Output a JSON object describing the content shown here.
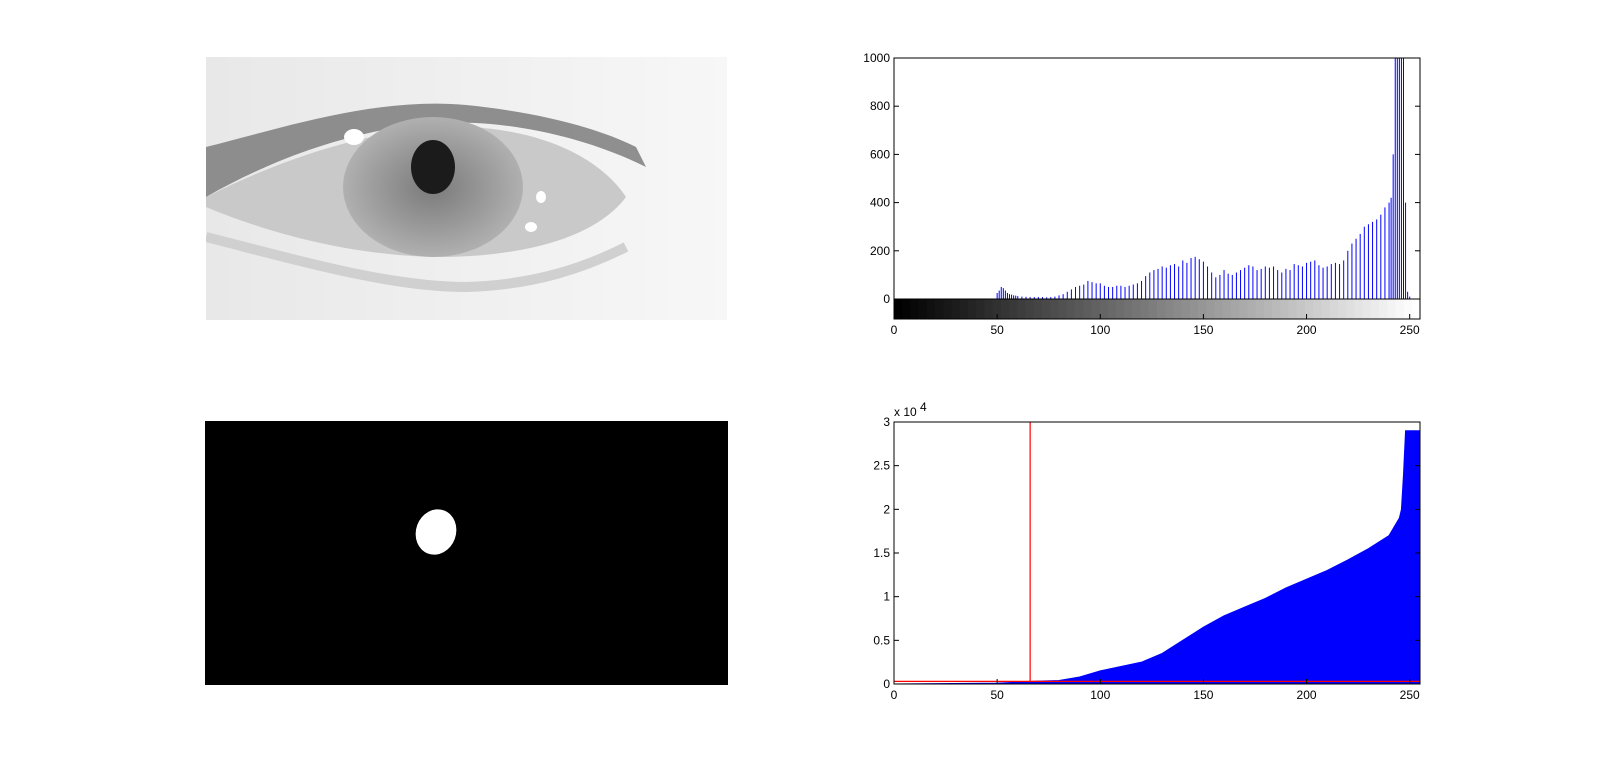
{
  "figure": {
    "panels": [
      "eye-image",
      "histogram",
      "binary-mask",
      "cumulative-histogram"
    ]
  },
  "colors": {
    "bar": "#0000ff",
    "threshold": "#ff0000",
    "axis": "#000000",
    "background": "#ffffff"
  },
  "chart_data": [
    {
      "type": "bar",
      "title": "",
      "xlabel": "",
      "ylabel": "",
      "xlim": [
        0,
        255
      ],
      "ylim": [
        0,
        1000
      ],
      "xticks": [
        0,
        50,
        100,
        150,
        200,
        250
      ],
      "yticks": [
        0,
        200,
        400,
        600,
        800,
        1000
      ],
      "colorbar": "grayscale 0-255",
      "grid": false,
      "x": [
        50,
        51,
        52,
        53,
        54,
        55,
        56,
        57,
        58,
        59,
        60,
        62,
        64,
        66,
        68,
        70,
        72,
        74,
        76,
        78,
        80,
        82,
        84,
        86,
        88,
        90,
        92,
        94,
        96,
        98,
        100,
        102,
        104,
        106,
        108,
        110,
        112,
        114,
        116,
        118,
        120,
        122,
        124,
        126,
        128,
        130,
        132,
        134,
        136,
        138,
        140,
        142,
        144,
        146,
        148,
        150,
        152,
        154,
        156,
        158,
        160,
        162,
        164,
        166,
        168,
        170,
        172,
        174,
        176,
        178,
        180,
        182,
        184,
        186,
        188,
        190,
        192,
        194,
        196,
        198,
        200,
        202,
        204,
        206,
        208,
        210,
        212,
        214,
        216,
        218,
        220,
        222,
        224,
        226,
        228,
        230,
        232,
        234,
        236,
        238,
        240,
        241,
        242,
        243,
        244,
        245,
        246,
        247,
        248,
        249,
        250
      ],
      "values": [
        25,
        35,
        50,
        45,
        35,
        25,
        20,
        18,
        15,
        14,
        12,
        10,
        9,
        8,
        8,
        8,
        8,
        7,
        8,
        10,
        15,
        20,
        30,
        40,
        50,
        55,
        60,
        75,
        70,
        65,
        65,
        55,
        50,
        50,
        55,
        55,
        50,
        55,
        60,
        65,
        75,
        95,
        110,
        120,
        125,
        135,
        130,
        140,
        145,
        135,
        160,
        150,
        170,
        175,
        165,
        155,
        135,
        110,
        90,
        100,
        120,
        105,
        100,
        110,
        120,
        130,
        140,
        135,
        120,
        125,
        135,
        130,
        135,
        120,
        110,
        125,
        120,
        145,
        140,
        135,
        150,
        155,
        160,
        140,
        130,
        135,
        145,
        150,
        145,
        160,
        200,
        230,
        250,
        270,
        300,
        310,
        320,
        330,
        350,
        380,
        400,
        420,
        600,
        1000,
        1000,
        1000,
        1000,
        1000,
        400,
        30,
        10
      ]
    },
    {
      "type": "area",
      "title": "",
      "xlabel": "",
      "ylabel": "",
      "xlim": [
        0,
        255
      ],
      "ylim": [
        0,
        30000
      ],
      "xticks": [
        0,
        50,
        100,
        150,
        200,
        250
      ],
      "yticks": [
        "0",
        "0.5",
        "1",
        "1.5",
        "2",
        "2.5",
        "3"
      ],
      "yscale_label": "x 10",
      "yscale_exponent": "4",
      "grid": false,
      "x": [
        0,
        50,
        60,
        66,
        80,
        90,
        100,
        110,
        120,
        130,
        140,
        150,
        160,
        170,
        180,
        190,
        200,
        210,
        220,
        230,
        240,
        245,
        246,
        247,
        248,
        255
      ],
      "values": [
        0,
        100,
        200,
        300,
        400,
        800,
        1500,
        2000,
        2500,
        3500,
        5000,
        6500,
        7800,
        8800,
        9800,
        11000,
        12000,
        13000,
        14200,
        15500,
        17000,
        19000,
        20000,
        24000,
        29000,
        29000
      ],
      "threshold_x": 66,
      "threshold_y": 300
    }
  ]
}
